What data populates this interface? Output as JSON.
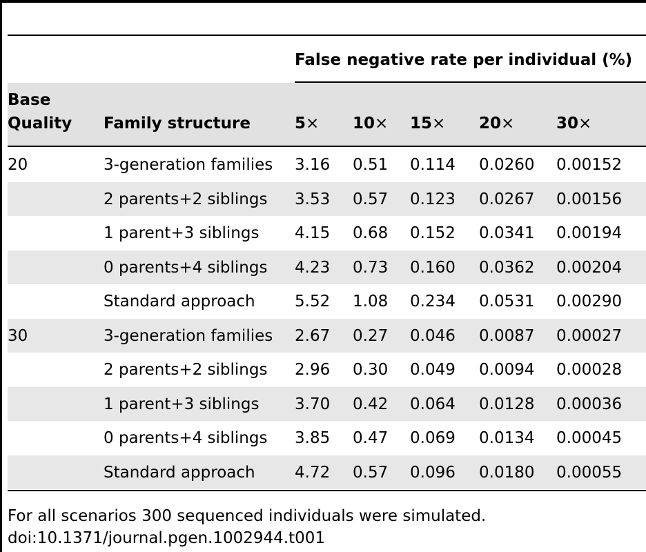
{
  "colors": {
    "rule": "#000000",
    "band": "#e7e7e7",
    "header_band": "#e1e1e1",
    "text": "#000000"
  },
  "table": {
    "spanning_header": "False negative rate per individual (%)",
    "col_base_quality": [
      "Base",
      "Quality"
    ],
    "col_family": "Family structure",
    "coverage_cols": [
      {
        "num": "5",
        "sym": "×"
      },
      {
        "num": "10",
        "sym": "×"
      },
      {
        "num": "15",
        "sym": "×"
      },
      {
        "num": "20",
        "sym": "×"
      },
      {
        "num": "30",
        "sym": "×"
      }
    ],
    "rows": [
      {
        "quality": "20",
        "family": "3-generation families",
        "values": [
          "3.16",
          "0.51",
          "0.114",
          "0.0260",
          "0.00152"
        ]
      },
      {
        "quality": "",
        "family": "2 parents+2 siblings",
        "values": [
          "3.53",
          "0.57",
          "0.123",
          "0.0267",
          "0.00156"
        ]
      },
      {
        "quality": "",
        "family": "1 parent+3 siblings",
        "values": [
          "4.15",
          "0.68",
          "0.152",
          "0.0341",
          "0.00194"
        ]
      },
      {
        "quality": "",
        "family": "0 parents+4 siblings",
        "values": [
          "4.23",
          "0.73",
          "0.160",
          "0.0362",
          "0.00204"
        ]
      },
      {
        "quality": "",
        "family": "Standard approach",
        "values": [
          "5.52",
          "1.08",
          "0.234",
          "0.0531",
          "0.00290"
        ]
      },
      {
        "quality": "30",
        "family": "3-generation families",
        "values": [
          "2.67",
          "0.27",
          "0.046",
          "0.0087",
          "0.00027"
        ]
      },
      {
        "quality": "",
        "family": "2 parents+2 siblings",
        "values": [
          "2.96",
          "0.30",
          "0.049",
          "0.0094",
          "0.00028"
        ]
      },
      {
        "quality": "",
        "family": "1 parent+3 siblings",
        "values": [
          "3.70",
          "0.42",
          "0.064",
          "0.0128",
          "0.00036"
        ]
      },
      {
        "quality": "",
        "family": "0 parents+4 siblings",
        "values": [
          "3.85",
          "0.47",
          "0.069",
          "0.0134",
          "0.00045"
        ]
      },
      {
        "quality": "",
        "family": "Standard approach",
        "values": [
          "4.72",
          "0.57",
          "0.096",
          "0.0180",
          "0.00055"
        ]
      }
    ]
  },
  "footer": {
    "note": "For all scenarios 300 sequenced individuals were simulated.",
    "doi": "doi:10.1371/journal.pgen.1002944.t001"
  }
}
